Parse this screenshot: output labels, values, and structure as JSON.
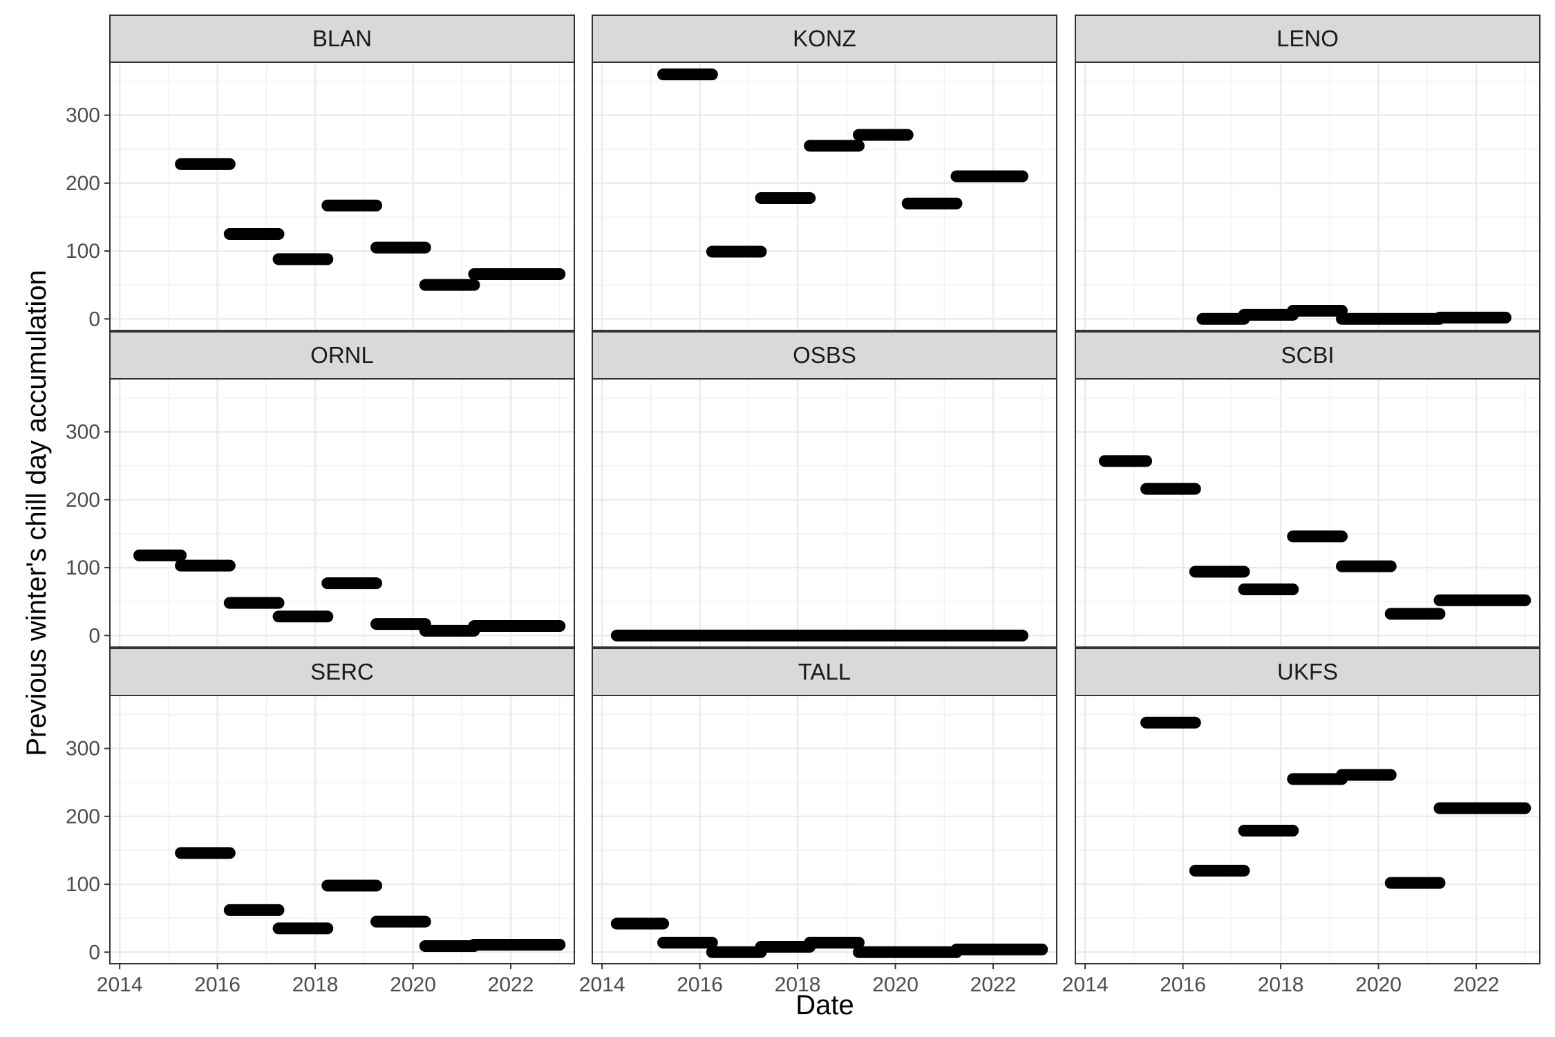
{
  "chart_data": {
    "type": "line",
    "layout": "facet-grid-3x3",
    "xlabel": "Date",
    "ylabel": "Previous winter's chill day accumulation",
    "x_ticks": [
      "2014",
      "2016",
      "2018",
      "2020",
      "2022"
    ],
    "y_ticks": [
      "0",
      "100",
      "200",
      "300"
    ],
    "xlim": [
      2013.8,
      2023.3
    ],
    "ylim": [
      -17,
      378
    ],
    "grid": true,
    "colors": {
      "segment": "#000000",
      "strip_fill": "#d9d9d9",
      "grid": "#ebebeb",
      "panel_border": "#333333"
    },
    "facets": [
      {
        "label": "BLAN",
        "segments": [
          {
            "x": [
              2015.25,
              2016.25
            ],
            "y": 228
          },
          {
            "x": [
              2016.25,
              2017.25
            ],
            "y": 125
          },
          {
            "x": [
              2017.25,
              2018.25
            ],
            "y": 88
          },
          {
            "x": [
              2018.25,
              2019.25
            ],
            "y": 167
          },
          {
            "x": [
              2019.25,
              2020.25
            ],
            "y": 105
          },
          {
            "x": [
              2020.25,
              2021.25
            ],
            "y": 50
          },
          {
            "x": [
              2021.25,
              2023.0
            ],
            "y": 66
          }
        ]
      },
      {
        "label": "KONZ",
        "segments": [
          {
            "x": [
              2015.25,
              2016.25
            ],
            "y": 360
          },
          {
            "x": [
              2016.25,
              2017.25
            ],
            "y": 99
          },
          {
            "x": [
              2017.25,
              2018.25
            ],
            "y": 178
          },
          {
            "x": [
              2018.25,
              2019.25
            ],
            "y": 255
          },
          {
            "x": [
              2019.25,
              2020.25
            ],
            "y": 271
          },
          {
            "x": [
              2020.25,
              2021.25
            ],
            "y": 170
          },
          {
            "x": [
              2021.25,
              2022.6
            ],
            "y": 210
          }
        ]
      },
      {
        "label": "LENO",
        "segments": [
          {
            "x": [
              2016.4,
              2017.25
            ],
            "y": 0
          },
          {
            "x": [
              2017.25,
              2018.25
            ],
            "y": 6
          },
          {
            "x": [
              2018.25,
              2019.25
            ],
            "y": 12
          },
          {
            "x": [
              2019.25,
              2021.25
            ],
            "y": 0
          },
          {
            "x": [
              2021.25,
              2022.6
            ],
            "y": 2
          }
        ]
      },
      {
        "label": "ORNL",
        "segments": [
          {
            "x": [
              2014.4,
              2015.25
            ],
            "y": 118
          },
          {
            "x": [
              2015.25,
              2016.25
            ],
            "y": 103
          },
          {
            "x": [
              2016.25,
              2017.25
            ],
            "y": 48
          },
          {
            "x": [
              2017.25,
              2018.25
            ],
            "y": 28
          },
          {
            "x": [
              2018.25,
              2019.25
            ],
            "y": 77
          },
          {
            "x": [
              2019.25,
              2020.25
            ],
            "y": 17
          },
          {
            "x": [
              2020.25,
              2021.25
            ],
            "y": 7
          },
          {
            "x": [
              2021.25,
              2023.0
            ],
            "y": 14
          }
        ]
      },
      {
        "label": "OSBS",
        "segments": [
          {
            "x": [
              2014.3,
              2022.6
            ],
            "y": 0
          }
        ]
      },
      {
        "label": "SCBI",
        "segments": [
          {
            "x": [
              2014.4,
              2015.25
            ],
            "y": 257
          },
          {
            "x": [
              2015.25,
              2016.25
            ],
            "y": 216
          },
          {
            "x": [
              2016.25,
              2017.25
            ],
            "y": 94
          },
          {
            "x": [
              2017.25,
              2018.25
            ],
            "y": 68
          },
          {
            "x": [
              2018.25,
              2019.25
            ],
            "y": 146
          },
          {
            "x": [
              2019.25,
              2020.25
            ],
            "y": 102
          },
          {
            "x": [
              2020.25,
              2021.25
            ],
            "y": 32
          },
          {
            "x": [
              2021.25,
              2023.0
            ],
            "y": 52
          }
        ]
      },
      {
        "label": "SERC",
        "segments": [
          {
            "x": [
              2015.25,
              2016.25
            ],
            "y": 146
          },
          {
            "x": [
              2016.25,
              2017.25
            ],
            "y": 62
          },
          {
            "x": [
              2017.25,
              2018.25
            ],
            "y": 35
          },
          {
            "x": [
              2018.25,
              2019.25
            ],
            "y": 98
          },
          {
            "x": [
              2019.25,
              2020.25
            ],
            "y": 45
          },
          {
            "x": [
              2020.25,
              2021.25
            ],
            "y": 9
          },
          {
            "x": [
              2021.25,
              2023.0
            ],
            "y": 11
          }
        ]
      },
      {
        "label": "TALL",
        "segments": [
          {
            "x": [
              2014.3,
              2015.25
            ],
            "y": 42
          },
          {
            "x": [
              2015.25,
              2016.25
            ],
            "y": 14
          },
          {
            "x": [
              2016.25,
              2017.25
            ],
            "y": 0
          },
          {
            "x": [
              2017.25,
              2018.25
            ],
            "y": 8
          },
          {
            "x": [
              2018.25,
              2019.25
            ],
            "y": 14
          },
          {
            "x": [
              2019.25,
              2021.25
            ],
            "y": 0
          },
          {
            "x": [
              2021.25,
              2023.0
            ],
            "y": 4
          }
        ]
      },
      {
        "label": "UKFS",
        "segments": [
          {
            "x": [
              2015.25,
              2016.25
            ],
            "y": 338
          },
          {
            "x": [
              2016.25,
              2017.25
            ],
            "y": 120
          },
          {
            "x": [
              2017.25,
              2018.25
            ],
            "y": 179
          },
          {
            "x": [
              2018.25,
              2019.25
            ],
            "y": 255
          },
          {
            "x": [
              2019.25,
              2020.25
            ],
            "y": 261
          },
          {
            "x": [
              2020.25,
              2021.25
            ],
            "y": 102
          },
          {
            "x": [
              2021.25,
              2023.0
            ],
            "y": 212
          }
        ]
      }
    ]
  }
}
